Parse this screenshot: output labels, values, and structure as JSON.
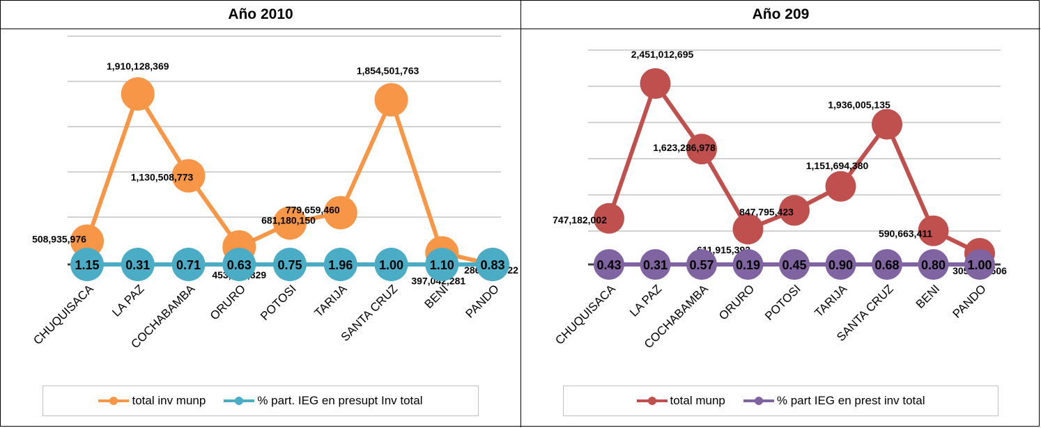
{
  "panels": [
    {
      "title": "Año 2010",
      "legend": [
        "total inv munp",
        "% part. IEG en presupt Inv total"
      ],
      "colors": {
        "top": "#F79646",
        "bottom": "#4BACC6"
      }
    },
    {
      "title": "Año 209",
      "legend": [
        "total munp",
        "% part IEG en prest inv total"
      ],
      "colors": {
        "top": "#C0504D",
        "bottom": "#8064A2"
      }
    }
  ],
  "chart_data": [
    {
      "type": "line",
      "title": "Año 2010",
      "categories": [
        "CHUQUISACA",
        "LA PAZ",
        "COCHABAMBA",
        "ORURO",
        "POTOSI",
        "TARIJA",
        "SANTA CRUZ",
        "BENI",
        "PANDO"
      ],
      "series": [
        {
          "name": "total inv munp",
          "values": [
            508935976,
            1910128369,
            1130508773,
            453191829,
            681180150,
            779659460,
            1854501763,
            397042281,
            286594422
          ],
          "labels": [
            "508,935,976",
            "1,910,128,369",
            "1,130,508,773",
            "453,191,829",
            "681,180,150",
            "779,659,460",
            "1,854,501,763",
            "397,042,281",
            "286,594,422"
          ]
        },
        {
          "name": "% part. IEG en presupt Inv total",
          "values": [
            1.15,
            0.31,
            0.71,
            0.63,
            0.75,
            1.96,
            1.0,
            1.1,
            0.83
          ],
          "labels": [
            "1.15",
            "0.31",
            "0.71",
            "0.63",
            "0.75",
            "1.96",
            "1.00",
            "1.10",
            "0.83"
          ]
        }
      ],
      "grid": true,
      "legend_position": "bottom"
    },
    {
      "type": "line",
      "title": "Año 209",
      "categories": [
        "CHUQUISACA",
        "LA PAZ",
        "COCHABAMBA",
        "ORURO",
        "POTOSI",
        "TARIJA",
        "SANTA CRUZ",
        "BENI",
        "PANDO"
      ],
      "series": [
        {
          "name": "total munp",
          "values": [
            747182002,
            2451012695,
            1623286978,
            611915392,
            847795423,
            1151694380,
            1936005135,
            590663411,
            305965506
          ],
          "labels": [
            "747,182,002",
            "2,451,012,695",
            "1,623,286,978",
            "611,915,392",
            "847,795,423",
            "1,151,694,380",
            "1,936,005,135",
            "590,663,411",
            "305,965,506"
          ]
        },
        {
          "name": "% part IEG en prest inv total",
          "values": [
            0.43,
            0.31,
            0.57,
            0.19,
            0.45,
            0.9,
            0.68,
            0.8,
            1.0
          ],
          "labels": [
            "0.43",
            "0.31",
            "0.57",
            "0.19",
            "0.45",
            "0.90",
            "0.68",
            "0.80",
            "1.00"
          ]
        }
      ],
      "grid": true,
      "legend_position": "bottom"
    }
  ]
}
